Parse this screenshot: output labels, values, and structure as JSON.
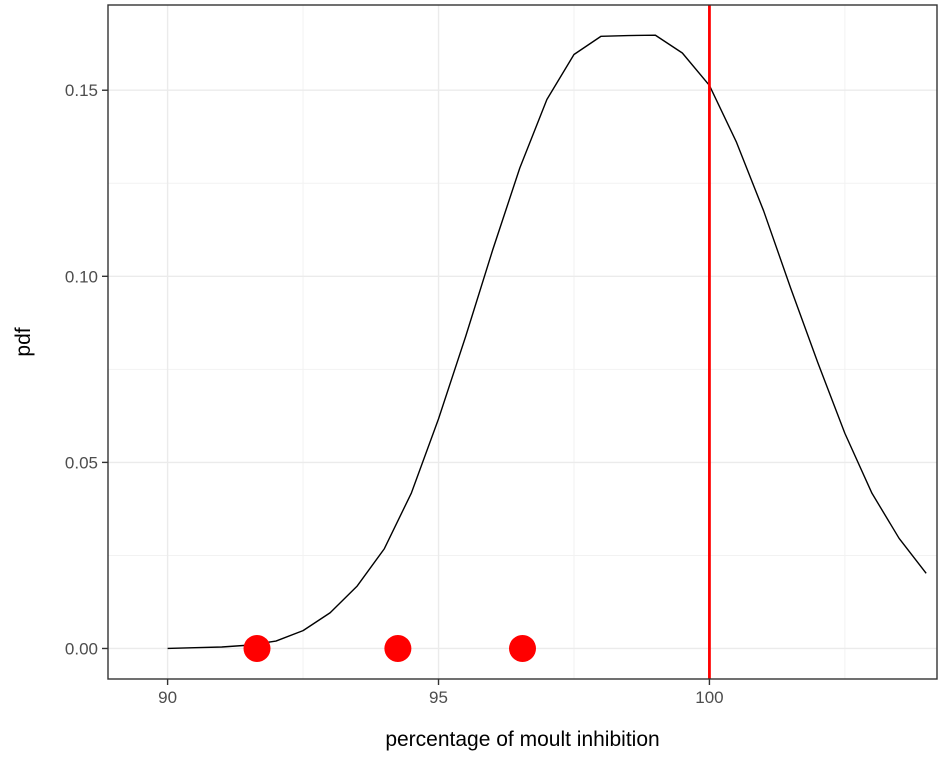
{
  "chart_data": {
    "type": "line",
    "title": "",
    "xlabel": "percentage of moult inhibition",
    "ylabel": "pdf",
    "xlim": [
      88.9,
      104.2
    ],
    "ylim": [
      -0.0082,
      0.1729
    ],
    "x_ticks": [
      90,
      95,
      100
    ],
    "x_tick_labels": [
      "90",
      "95",
      "100"
    ],
    "x_minor_ticks": [
      92.5,
      97.5,
      102.5
    ],
    "y_ticks": [
      0,
      0.05,
      0.1,
      0.15
    ],
    "y_tick_labels": [
      "0.00",
      "0.05",
      "0.10",
      "0.15"
    ],
    "y_minor_ticks": [
      0.025,
      0.075,
      0.125
    ],
    "grid": true,
    "legend": "none",
    "series": [
      {
        "kind": "line",
        "color": "#000000",
        "x": [
          90.0,
          90.5,
          91.0,
          91.5,
          92.0,
          92.5,
          93.0,
          93.5,
          94.0,
          94.5,
          95.0,
          95.5,
          96.0,
          96.5,
          97.0,
          97.5,
          98.0,
          98.5,
          99.0,
          99.5,
          100.0,
          100.5,
          101.0,
          101.5,
          102.0,
          102.5,
          103.0,
          103.5,
          104.0
        ],
        "y": [
          0.0,
          0.0002,
          0.0004,
          0.0009,
          0.002,
          0.0048,
          0.0096,
          0.0168,
          0.0268,
          0.0418,
          0.0617,
          0.0838,
          0.1071,
          0.1291,
          0.1475,
          0.1596,
          0.1645,
          0.1647,
          0.1648,
          0.16,
          0.1513,
          0.136,
          0.1176,
          0.0968,
          0.0768,
          0.0578,
          0.0417,
          0.0296,
          0.0202
        ]
      },
      {
        "kind": "points",
        "color": "#ff0000",
        "x": [
          91.65,
          94.25,
          96.55
        ],
        "y": [
          0,
          0,
          0
        ]
      }
    ],
    "reference_lines": [
      {
        "orientation": "vertical",
        "x": 100,
        "color": "#ff0000"
      }
    ]
  }
}
